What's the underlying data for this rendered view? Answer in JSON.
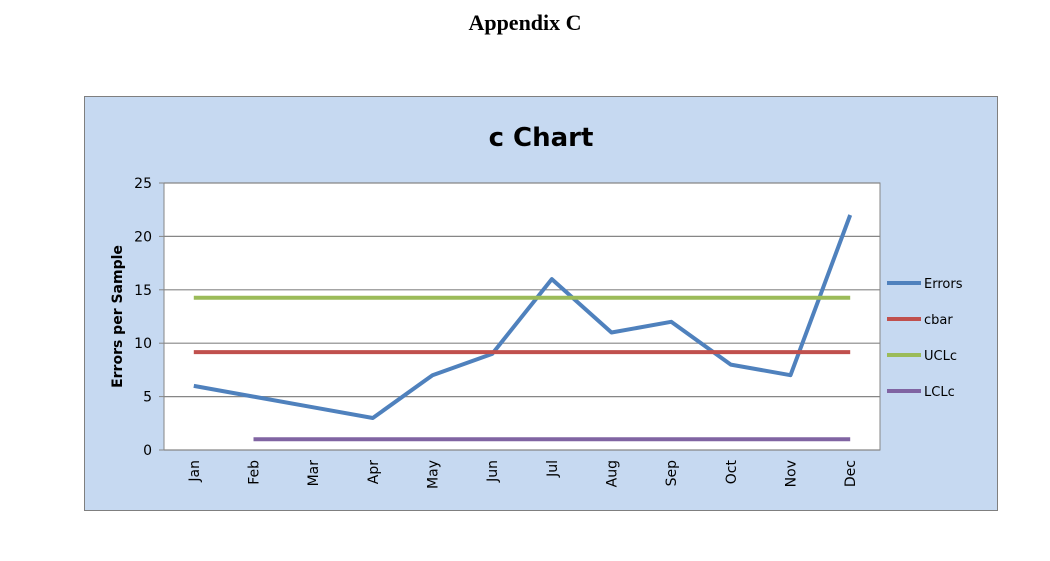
{
  "page": {
    "heading": "Appendix C"
  },
  "colors": {
    "chart_background": "#c6d9f1",
    "plot_background": "#ffffff",
    "gridline": "#868686",
    "frame_border": "#7f7f7f"
  },
  "chart_data": {
    "type": "line",
    "title": "c Chart",
    "xlabel": "",
    "ylabel": "Errors per Sample",
    "categories": [
      "Jan",
      "Feb",
      "Mar",
      "Apr",
      "May",
      "Jun",
      "Jul",
      "Aug",
      "Sep",
      "Oct",
      "Nov",
      "Dec"
    ],
    "ylim": [
      0,
      25
    ],
    "yticks": [
      0,
      5,
      10,
      15,
      20,
      25
    ],
    "grid": true,
    "legend_position": "right",
    "series": [
      {
        "name": "Errors",
        "color": "#4f81bd",
        "values": [
          6,
          5,
          4,
          3,
          7,
          9,
          16,
          11,
          12,
          8,
          7,
          22
        ]
      },
      {
        "name": "cbar",
        "color": "#c0504d",
        "values": [
          9.17,
          9.17,
          9.17,
          9.17,
          9.17,
          9.17,
          9.17,
          9.17,
          9.17,
          9.17,
          9.17,
          9.17
        ]
      },
      {
        "name": "UCLc",
        "color": "#9bbb59",
        "values": [
          14.25,
          14.25,
          14.25,
          14.25,
          14.25,
          14.25,
          14.25,
          14.25,
          14.25,
          14.25,
          14.25,
          14.25
        ]
      },
      {
        "name": "LCLc",
        "color": "#8064a2",
        "values": [
          null,
          1,
          1,
          1,
          1,
          1,
          1,
          1,
          1,
          1,
          1,
          1
        ]
      }
    ]
  }
}
